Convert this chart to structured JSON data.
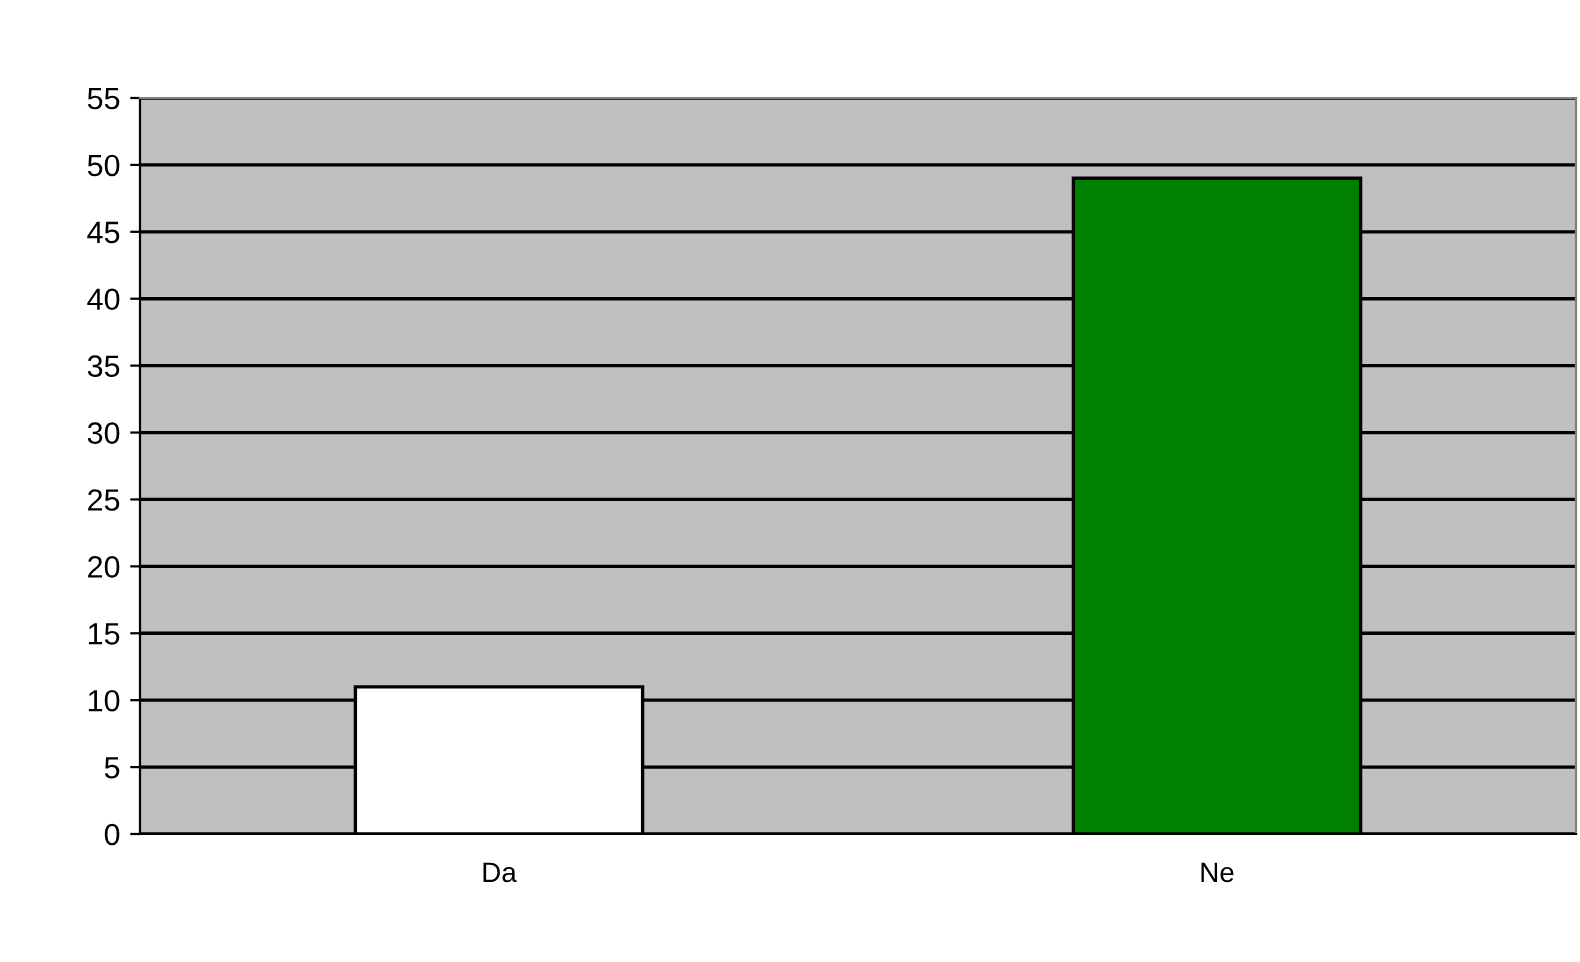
{
  "chart_data": {
    "type": "bar",
    "categories": [
      "Da",
      "Ne"
    ],
    "values": [
      11,
      49
    ],
    "colors": [
      "#ffffff",
      "#008000"
    ],
    "ylim": [
      0,
      55
    ],
    "yticks": [
      0,
      5,
      10,
      15,
      20,
      25,
      30,
      35,
      40,
      45,
      50,
      55
    ],
    "grid": "y"
  }
}
